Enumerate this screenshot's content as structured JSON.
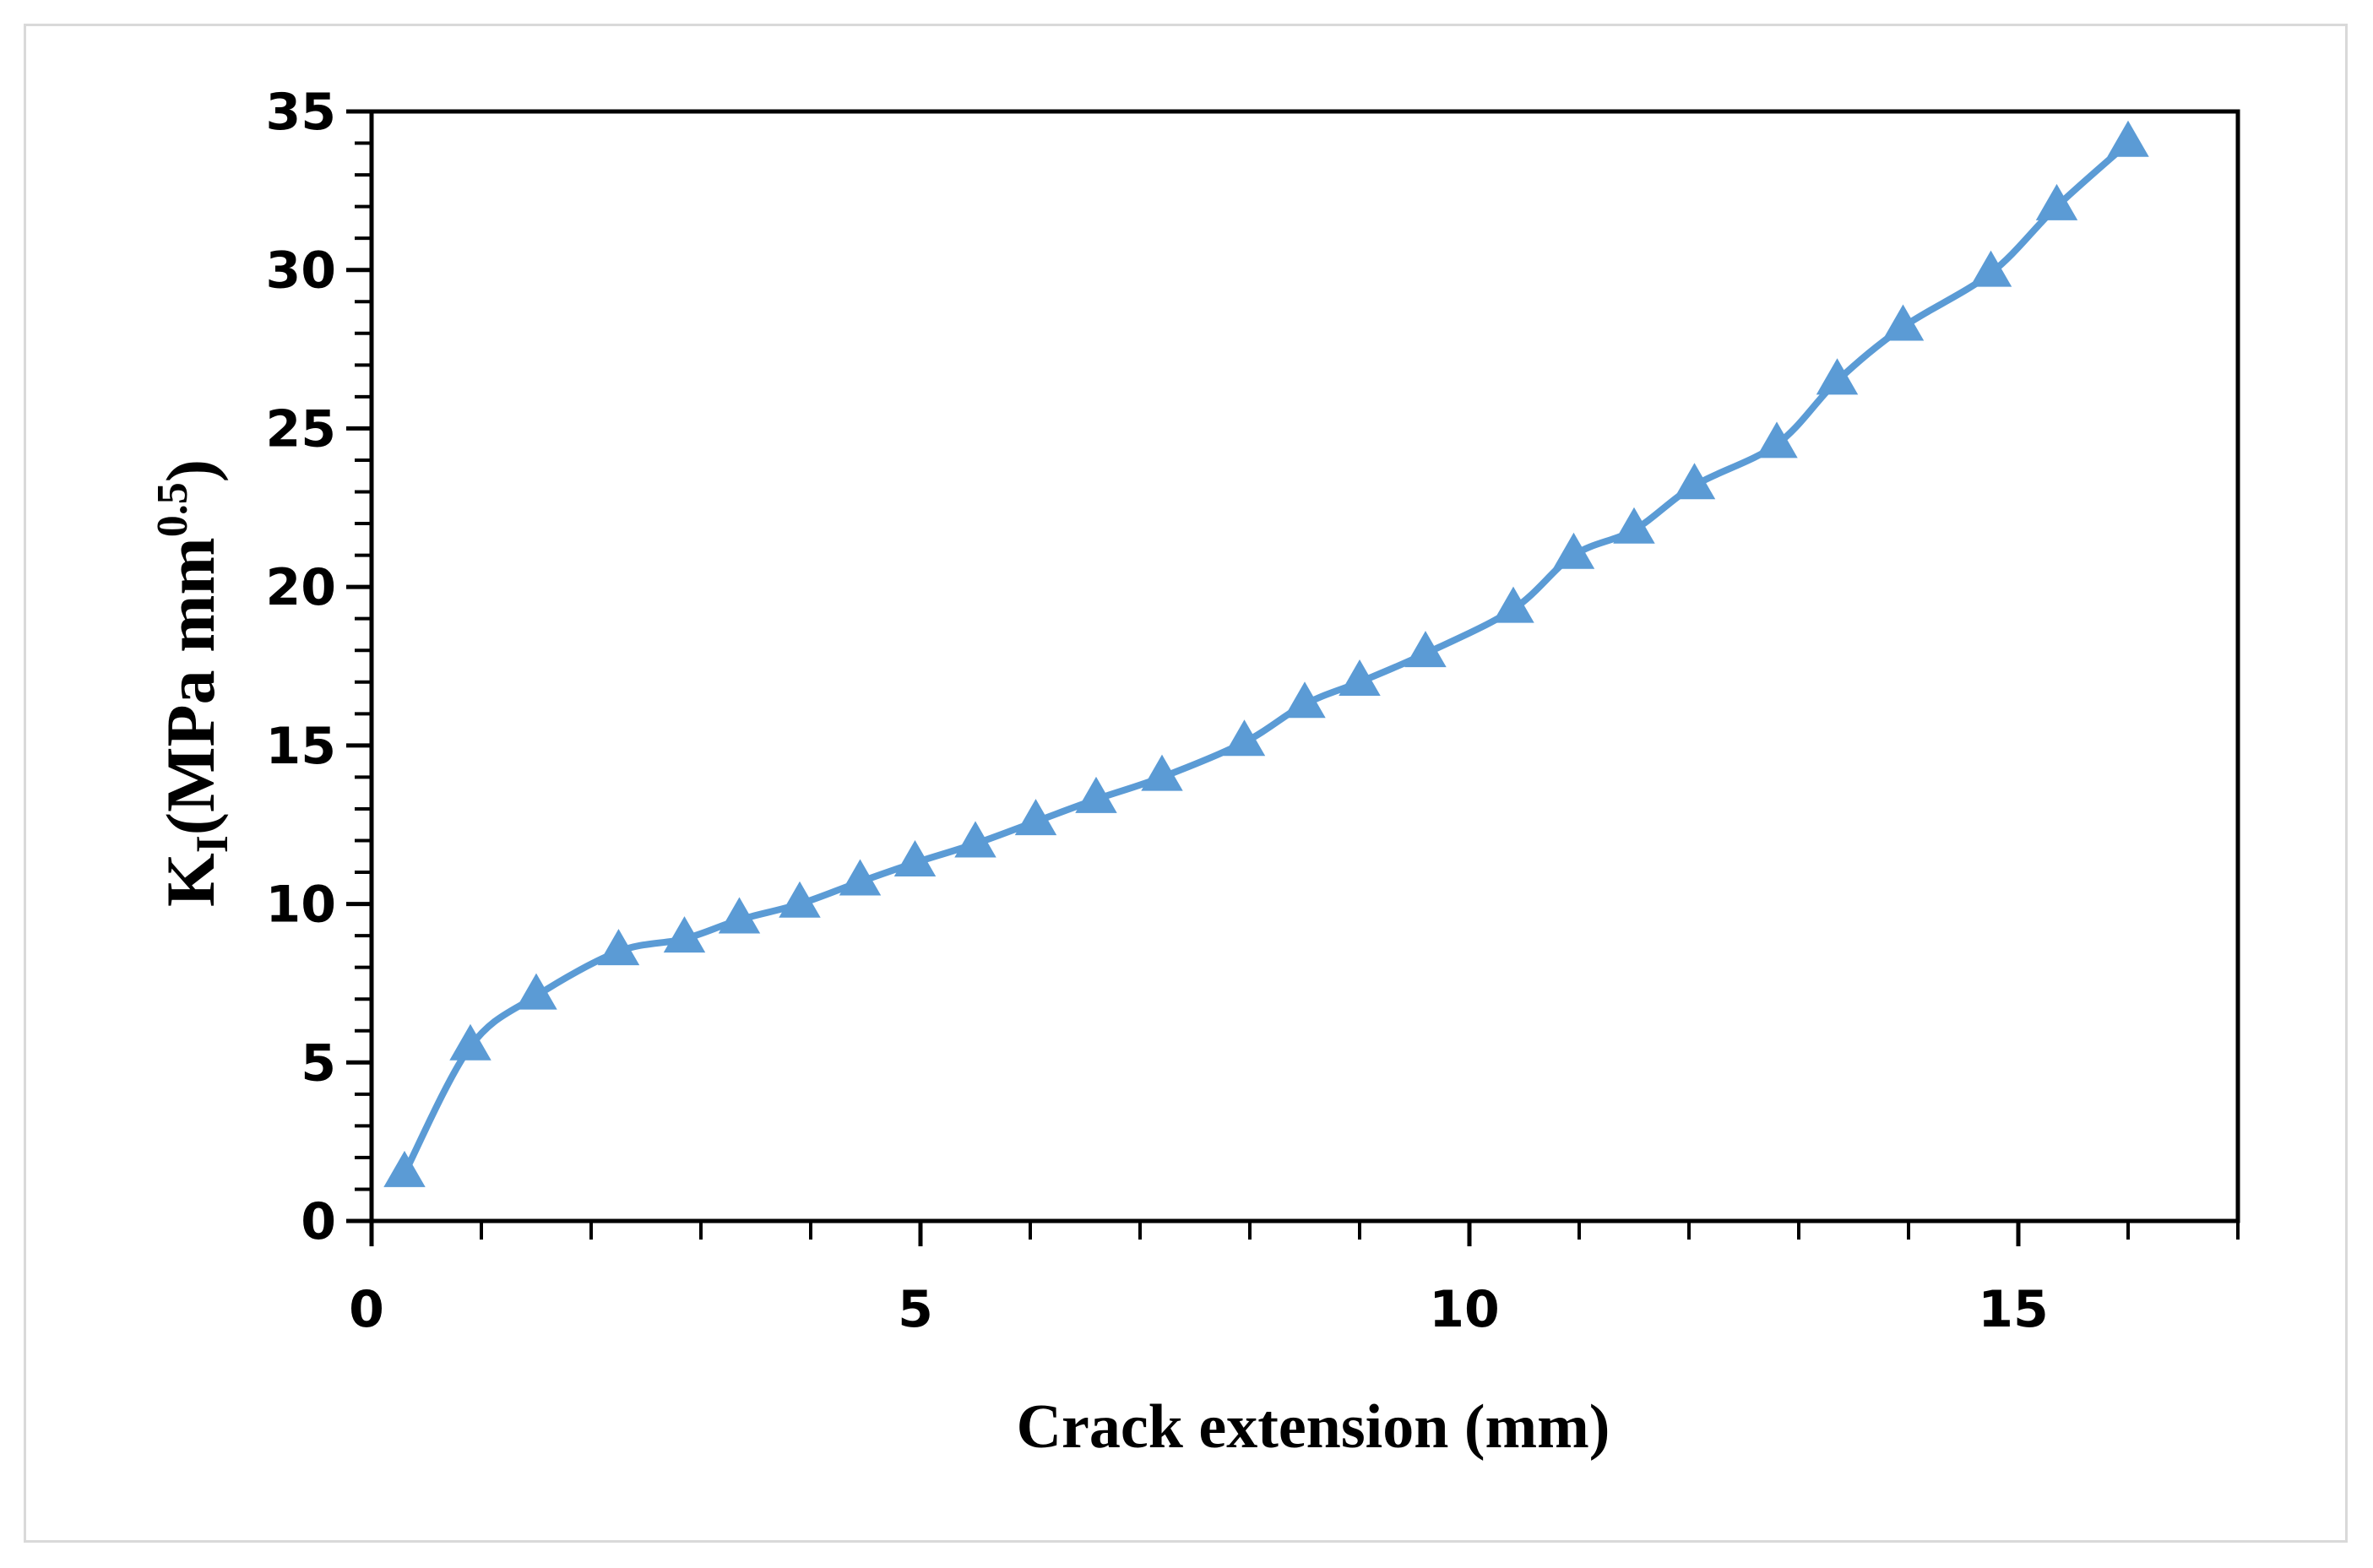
{
  "chart_data": {
    "type": "line",
    "xlabel": "Crack extension (mm)",
    "ylabel": {
      "main": "K",
      "sub": "I",
      "unit_prefix": "(MPa mm",
      "unit_exp": "0.5",
      "unit_suffix": ")"
    },
    "xlim": [
      0,
      17
    ],
    "ylim": [
      0,
      35
    ],
    "x_ticks": [
      0,
      5,
      10,
      15
    ],
    "y_ticks": [
      0,
      5,
      10,
      15,
      20,
      25,
      30,
      35
    ],
    "x_minor_step": 1,
    "y_minor_step": 1,
    "grid": false,
    "legend": "none",
    "series": [
      {
        "color": "#5B9BD5",
        "marker": "triangle",
        "smooth": true,
        "x": [
          0.3,
          0.9,
          1.5,
          2.25,
          2.85,
          3.35,
          3.9,
          4.45,
          4.95,
          5.5,
          6.05,
          6.6,
          7.2,
          7.95,
          8.5,
          9.0,
          9.6,
          10.4,
          10.95,
          11.5,
          12.05,
          12.8,
          13.35,
          13.95,
          14.75,
          15.35,
          16.0
        ],
        "y": [
          1.5,
          5.5,
          7.1,
          8.5,
          8.9,
          9.5,
          10.0,
          10.7,
          11.3,
          11.9,
          12.6,
          13.3,
          14.0,
          15.1,
          16.3,
          17.0,
          17.9,
          19.3,
          21.0,
          21.8,
          23.2,
          24.5,
          26.5,
          28.2,
          29.9,
          32.0,
          34.0
        ]
      }
    ]
  }
}
